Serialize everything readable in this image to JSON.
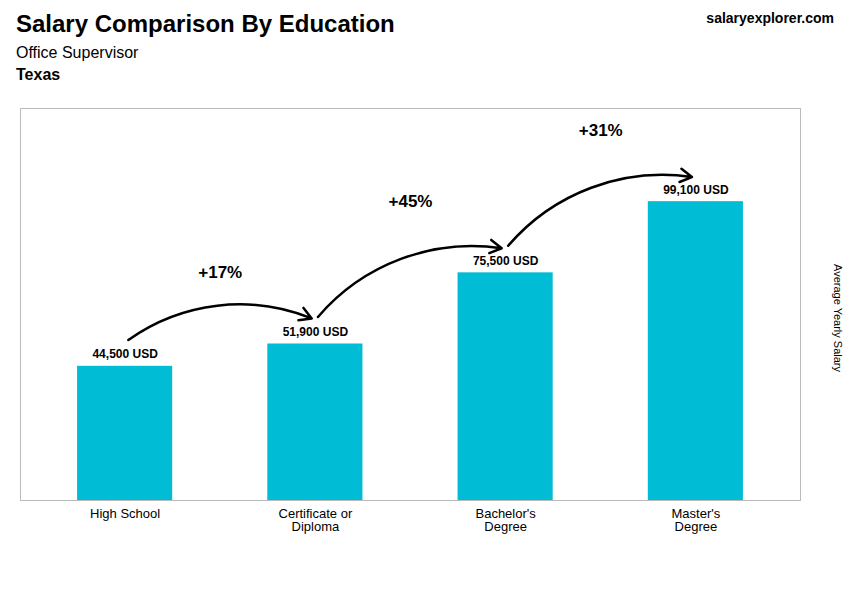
{
  "chart_data": {
    "type": "bar",
    "title": "Salary Comparison By Education",
    "subtitle": "Office Supervisor",
    "categories": [
      "High School",
      "Certificate or\nDiploma",
      "Bachelor's\nDegree",
      "Master's\nDegree"
    ],
    "values": [
      44500,
      51900,
      75500,
      99100
    ],
    "value_labels": [
      "44,500 USD",
      "51,900 USD",
      "75,500 USD",
      "99,100 USD"
    ],
    "data_labels": true,
    "color": "#00bcd4",
    "ylabel": "Average Yearly Salary",
    "ylim": [
      0,
      130000
    ],
    "tick_labels": "x",
    "annotations": [
      {
        "text": "Texas"
      },
      {
        "text": "salaryexplorer.com"
      },
      {
        "text": "+17%",
        "from": "High School",
        "to": "Certificate or\nDiploma"
      },
      {
        "text": "+45%",
        "from": "Certificate or\nDiploma",
        "to": "Bachelor's\nDegree"
      },
      {
        "text": "+31%",
        "from": "Bachelor's\nDegree",
        "to": "Master's\nDegree"
      }
    ]
  }
}
